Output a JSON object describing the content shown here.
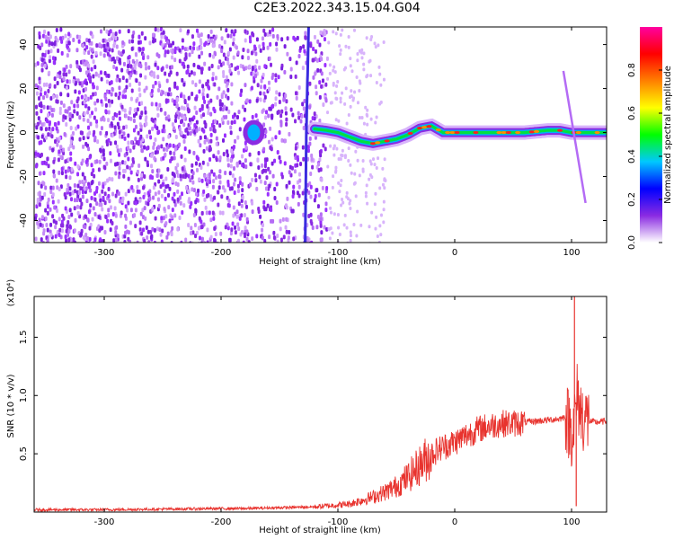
{
  "title": "C2E3.2022.343.15.04.G04",
  "chart_data": [
    {
      "type": "heatmap",
      "xlabel": "Height of straight line (km)",
      "ylabel": "Frequency (Hz)",
      "xlim": [
        -360,
        130
      ],
      "ylim": [
        -50,
        48
      ],
      "x_ticks": [
        "-300",
        "-200",
        "-100",
        "0",
        "100"
      ],
      "x_tick_values": [
        -300,
        -200,
        -100,
        0,
        100
      ],
      "y_ticks": [
        "-40",
        "-20",
        "0",
        "20",
        "40"
      ],
      "y_tick_values": [
        -40,
        -20,
        0,
        20,
        40
      ],
      "colorbar": {
        "label": "Normalized spectral amplitude",
        "range": [
          0,
          1
        ],
        "ticks": [
          "0.0",
          "0.2",
          "0.4",
          "0.6",
          "0.8"
        ],
        "tick_values": [
          0,
          0.2,
          0.4,
          0.6,
          0.8
        ],
        "colors": [
          "#ffffff",
          "#8a2be2",
          "#0000ff",
          "#00c8ff",
          "#00ff00",
          "#ffff00",
          "#ff8000",
          "#ff0000",
          "#ff00a0"
        ]
      },
      "ridge": {
        "x": [
          -125,
          -110,
          -100,
          -90,
          -80,
          -70,
          -60,
          -50,
          -40,
          -30,
          -20,
          -10,
          0,
          20,
          40,
          60,
          80,
          90,
          100,
          110,
          130
        ],
        "freq": [
          2,
          1,
          0,
          -2,
          -4,
          -5,
          -4,
          -3,
          -1,
          2,
          3,
          0,
          0,
          0,
          0,
          0,
          1,
          1,
          0,
          0,
          0
        ]
      }
    },
    {
      "type": "line",
      "xlabel": "Height of straight line (km)",
      "ylabel": "SNR (10 * v/v)",
      "y_multiplier": "(x10⁴)",
      "xlim": [
        -360,
        130
      ],
      "ylim": [
        0,
        1.85
      ],
      "x_ticks": [
        "-300",
        "-200",
        "-100",
        "0",
        "100"
      ],
      "x_tick_values": [
        -300,
        -200,
        -100,
        0,
        100
      ],
      "y_ticks": [
        "0.5",
        "1.0",
        "1.5"
      ],
      "y_tick_values": [
        0.5,
        1.0,
        1.5
      ],
      "series_color": "#e8332e",
      "x": [
        -360,
        -300,
        -250,
        -200,
        -180,
        -160,
        -140,
        -120,
        -100,
        -90,
        -80,
        -70,
        -60,
        -50,
        -40,
        -30,
        -20,
        -10,
        0,
        10,
        20,
        30,
        40,
        50,
        60,
        70,
        80,
        90,
        95,
        100,
        103,
        105,
        108,
        112,
        115,
        120,
        130
      ],
      "y": [
        0.02,
        0.02,
        0.025,
        0.03,
        0.03,
        0.035,
        0.04,
        0.045,
        0.06,
        0.07,
        0.1,
        0.13,
        0.17,
        0.22,
        0.3,
        0.4,
        0.5,
        0.56,
        0.6,
        0.66,
        0.71,
        0.74,
        0.76,
        0.76,
        0.77,
        0.78,
        0.79,
        0.8,
        0.82,
        0.7,
        0.8,
        1.0,
        0.85,
        0.8,
        0.78,
        0.77,
        0.78
      ],
      "peaks": [
        {
          "x": 102.5,
          "y": 1.85
        },
        {
          "x": 104,
          "y": 0.05
        }
      ]
    }
  ]
}
